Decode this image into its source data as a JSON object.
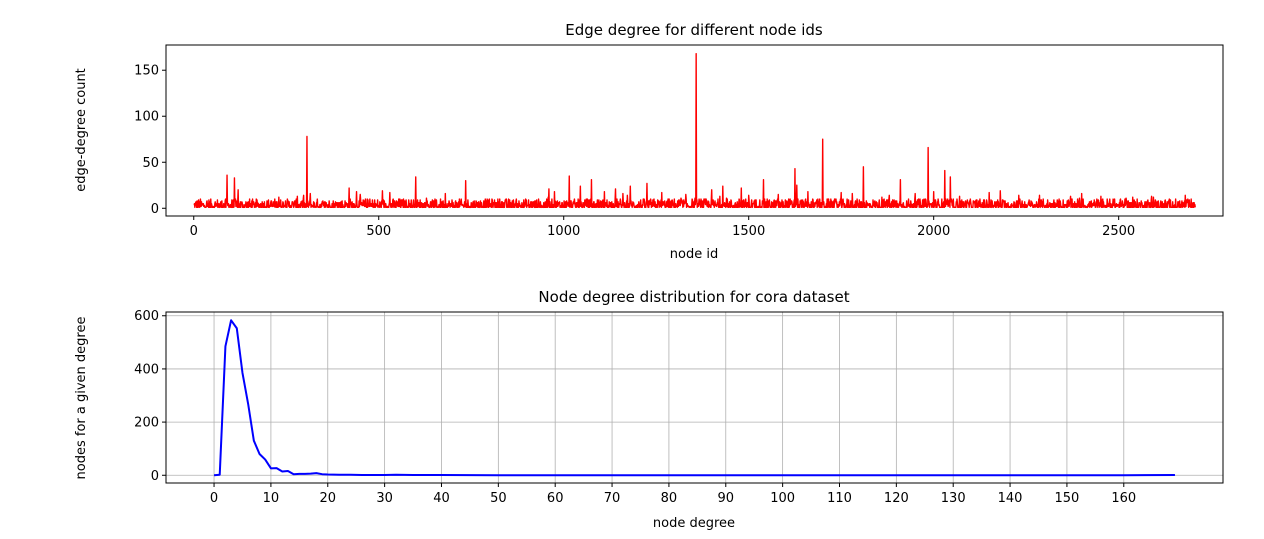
{
  "chart_data": [
    {
      "type": "line",
      "title": "Edge degree for different node ids",
      "xlabel": "node id",
      "ylabel": "edge-degree count",
      "xlim": [
        -75,
        2782
      ],
      "ylim": [
        -8.4,
        177.4
      ],
      "xticks": [
        0,
        500,
        1000,
        1500,
        2000,
        2500
      ],
      "yticks": [
        0,
        50,
        100,
        150
      ],
      "grid": false,
      "series": [
        {
          "color": "#ff0000",
          "baseline_range": [
            1,
            10
          ],
          "spikes": [
            {
              "x": 90,
              "y": 36
            },
            {
              "x": 110,
              "y": 33
            },
            {
              "x": 120,
              "y": 20
            },
            {
              "x": 230,
              "y": 12
            },
            {
              "x": 280,
              "y": 13
            },
            {
              "x": 306,
              "y": 78
            },
            {
              "x": 315,
              "y": 16
            },
            {
              "x": 420,
              "y": 22
            },
            {
              "x": 440,
              "y": 18
            },
            {
              "x": 450,
              "y": 15
            },
            {
              "x": 510,
              "y": 19
            },
            {
              "x": 530,
              "y": 17
            },
            {
              "x": 600,
              "y": 34
            },
            {
              "x": 680,
              "y": 16
            },
            {
              "x": 735,
              "y": 30
            },
            {
              "x": 960,
              "y": 21
            },
            {
              "x": 975,
              "y": 18
            },
            {
              "x": 1015,
              "y": 35
            },
            {
              "x": 1045,
              "y": 24
            },
            {
              "x": 1075,
              "y": 31
            },
            {
              "x": 1110,
              "y": 18
            },
            {
              "x": 1140,
              "y": 21
            },
            {
              "x": 1160,
              "y": 16
            },
            {
              "x": 1180,
              "y": 24
            },
            {
              "x": 1225,
              "y": 27
            },
            {
              "x": 1265,
              "y": 17
            },
            {
              "x": 1330,
              "y": 15
            },
            {
              "x": 1358,
              "y": 168
            },
            {
              "x": 1400,
              "y": 20
            },
            {
              "x": 1430,
              "y": 24
            },
            {
              "x": 1480,
              "y": 22
            },
            {
              "x": 1500,
              "y": 14
            },
            {
              "x": 1540,
              "y": 31
            },
            {
              "x": 1580,
              "y": 15
            },
            {
              "x": 1625,
              "y": 43
            },
            {
              "x": 1630,
              "y": 25
            },
            {
              "x": 1660,
              "y": 18
            },
            {
              "x": 1700,
              "y": 75
            },
            {
              "x": 1750,
              "y": 17
            },
            {
              "x": 1780,
              "y": 16
            },
            {
              "x": 1810,
              "y": 45
            },
            {
              "x": 1880,
              "y": 14
            },
            {
              "x": 1910,
              "y": 31
            },
            {
              "x": 1950,
              "y": 16
            },
            {
              "x": 1985,
              "y": 66
            },
            {
              "x": 2000,
              "y": 18
            },
            {
              "x": 2030,
              "y": 41
            },
            {
              "x": 2045,
              "y": 34
            },
            {
              "x": 2070,
              "y": 13
            },
            {
              "x": 2150,
              "y": 17
            },
            {
              "x": 2180,
              "y": 19
            },
            {
              "x": 2230,
              "y": 14
            },
            {
              "x": 2370,
              "y": 13
            },
            {
              "x": 2400,
              "y": 16
            },
            {
              "x": 2520,
              "y": 11
            },
            {
              "x": 2680,
              "y": 14
            }
          ]
        }
      ]
    },
    {
      "type": "line",
      "title": "Node degree distribution for cora dataset",
      "xlabel": "node degree",
      "ylabel": "nodes for a given degree",
      "xlim": [
        -8.45,
        177.45
      ],
      "ylim": [
        -29.1,
        614.1
      ],
      "xticks": [
        0,
        10,
        20,
        30,
        40,
        50,
        60,
        70,
        80,
        90,
        100,
        110,
        120,
        130,
        140,
        150,
        160
      ],
      "yticks": [
        0,
        200,
        400,
        600
      ],
      "grid": true,
      "series": [
        {
          "color": "#0000ff",
          "x": [
            0,
            1,
            2,
            3,
            4,
            5,
            6,
            7,
            8,
            9,
            10,
            11,
            12,
            13,
            14,
            15,
            16,
            17,
            18,
            19,
            20,
            22,
            24,
            26,
            28,
            30,
            32,
            35,
            40,
            50,
            60,
            70,
            80,
            100,
            120,
            140,
            160,
            169
          ],
          "y": [
            0,
            2,
            485,
            583,
            553,
            385,
            268,
            130,
            80,
            59,
            26,
            27,
            14,
            16,
            4,
            5,
            5,
            6,
            8,
            4,
            3,
            2,
            2,
            1,
            1,
            1,
            2,
            1,
            1,
            0,
            0,
            0,
            0,
            0,
            0,
            0,
            0,
            1
          ]
        }
      ]
    }
  ]
}
